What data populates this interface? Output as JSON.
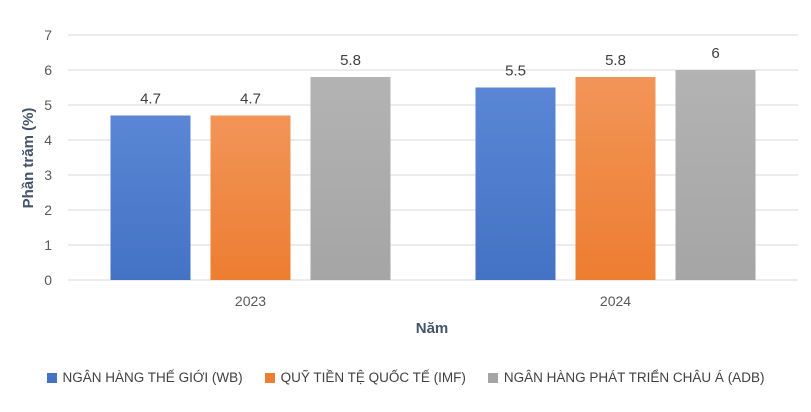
{
  "chart_data": {
    "type": "bar",
    "categories": [
      "2023",
      "2024"
    ],
    "series": [
      {
        "name": "NGÂN HÀNG THẾ GIỚI (WB)",
        "values": [
          4.7,
          5.5
        ],
        "color": "#4472c4",
        "color_light": "#5b86d6"
      },
      {
        "name": "QUỸ TIỀN TỆ QUỐC TẾ (IMF)",
        "values": [
          4.7,
          5.8
        ],
        "color": "#ed7d31",
        "color_light": "#f29558"
      },
      {
        "name": "NGÂN HÀNG PHÁT TRIỂN CHÂU Á (ADB)",
        "values": [
          5.8,
          6
        ],
        "color": "#a5a5a5",
        "color_light": "#b3b3b3"
      }
    ],
    "data_labels": [
      [
        "4.7",
        "5.5"
      ],
      [
        "4.7",
        "5.8"
      ],
      [
        "5.8",
        "6"
      ]
    ],
    "xlabel": "Năm",
    "ylabel": "Phần trăm (%)",
    "ylim": [
      0,
      7
    ],
    "yticks": [
      "0",
      "1",
      "2",
      "3",
      "4",
      "5",
      "6",
      "7"
    ],
    "grid": true,
    "legend": "bottom"
  }
}
